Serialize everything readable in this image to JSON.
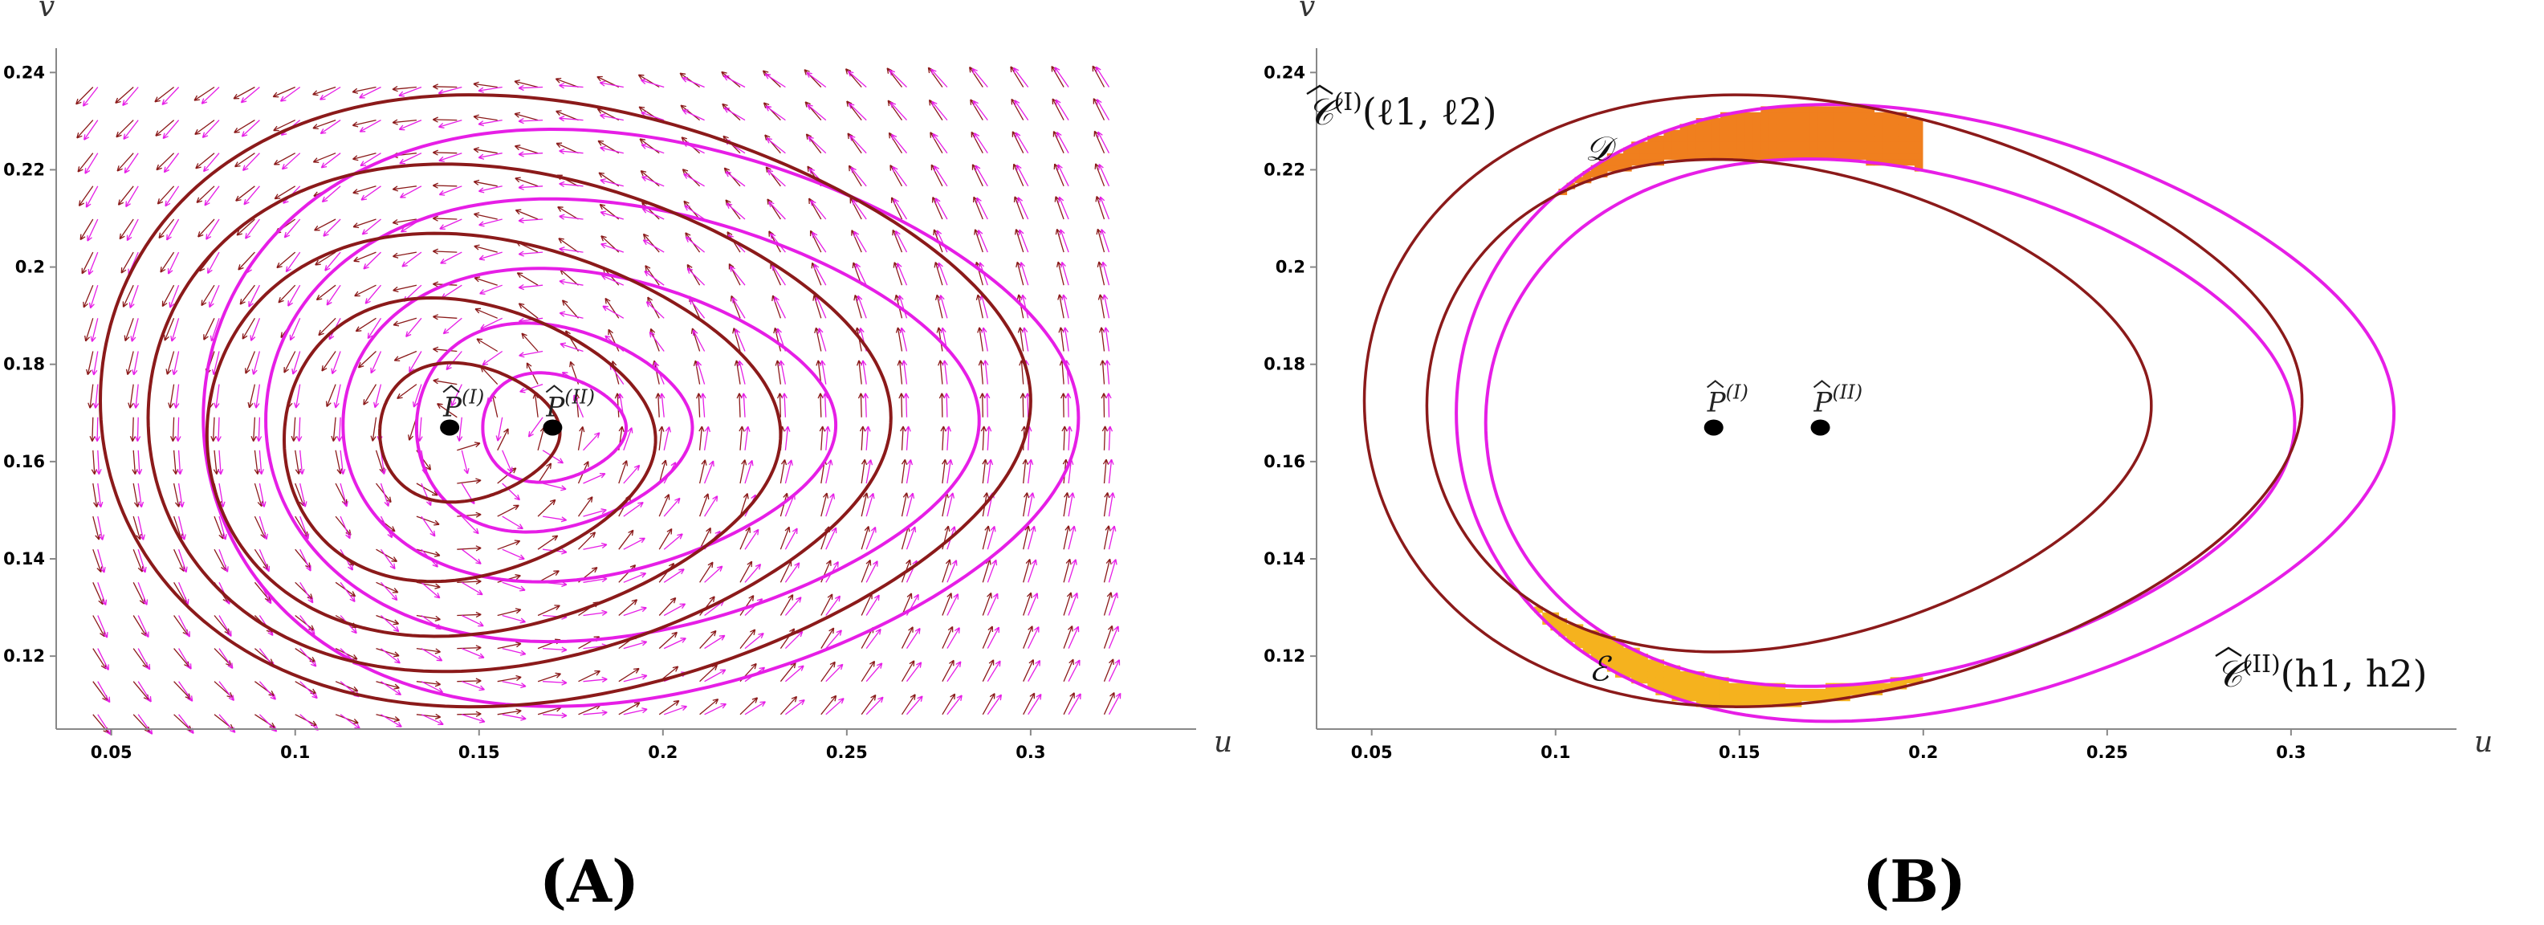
{
  "colors": {
    "system_I": "#8B1A1A",
    "system_II": "#E61EE6",
    "region_D": "#F07F1E",
    "region_E": "#F5B21E",
    "equilibrium": "#000000"
  },
  "chart_data": [
    {
      "id": "A",
      "type": "phase-portrait",
      "caption": "A",
      "xlabel": "u",
      "ylabel": "v",
      "xlim": [
        0.035,
        0.345
      ],
      "ylim": [
        0.105,
        0.245
      ],
      "xticks": [
        "0.05",
        "0.1",
        "0.15",
        "0.2",
        "0.25",
        "0.3"
      ],
      "yticks": [
        "0.12",
        "0.14",
        "0.16",
        "0.18",
        "0.2",
        "0.22",
        "0.24"
      ],
      "direction_field": {
        "x_range": [
          0.045,
          0.32
        ],
        "y_range": [
          0.108,
          0.237
        ],
        "systems": [
          "I",
          "II"
        ]
      },
      "equilibria": [
        {
          "name": "P_I",
          "label": "P^(I)",
          "x": 0.142,
          "y": 0.167
        },
        {
          "name": "P_II",
          "label": "P^(II)",
          "x": 0.17,
          "y": 0.167
        }
      ],
      "orbits": {
        "system_I": [
          {
            "xmin": 0.123,
            "xmax": 0.172,
            "ymin": 0.152,
            "ymax": 0.18
          },
          {
            "xmin": 0.097,
            "xmax": 0.198,
            "ymin": 0.136,
            "ymax": 0.193
          },
          {
            "xmin": 0.076,
            "xmax": 0.232,
            "ymin": 0.125,
            "ymax": 0.206
          },
          {
            "xmin": 0.06,
            "xmax": 0.262,
            "ymin": 0.118,
            "ymax": 0.22
          },
          {
            "xmin": 0.047,
            "xmax": 0.3,
            "ymin": 0.111,
            "ymax": 0.234
          }
        ],
        "system_II": [
          {
            "xmin": 0.151,
            "xmax": 0.19,
            "ymin": 0.156,
            "ymax": 0.178
          },
          {
            "xmin": 0.133,
            "xmax": 0.208,
            "ymin": 0.146,
            "ymax": 0.188
          },
          {
            "xmin": 0.113,
            "xmax": 0.247,
            "ymin": 0.136,
            "ymax": 0.199
          },
          {
            "xmin": 0.092,
            "xmax": 0.286,
            "ymin": 0.124,
            "ymax": 0.213
          },
          {
            "xmin": 0.075,
            "xmax": 0.313,
            "ymin": 0.111,
            "ymax": 0.227
          }
        ]
      }
    },
    {
      "id": "B",
      "type": "phase-portrait",
      "caption": "B",
      "xlabel": "u",
      "ylabel": "v",
      "xlim": [
        0.035,
        0.345
      ],
      "ylim": [
        0.105,
        0.245
      ],
      "xticks": [
        "0.05",
        "0.1",
        "0.15",
        "0.2",
        "0.25",
        "0.3"
      ],
      "yticks": [
        "0.12",
        "0.14",
        "0.16",
        "0.18",
        "0.2",
        "0.22",
        "0.24"
      ],
      "equilibria": [
        {
          "name": "P_I",
          "label": "P^(I)",
          "x": 0.143,
          "y": 0.167
        },
        {
          "name": "P_II",
          "label": "P^(II)",
          "x": 0.172,
          "y": 0.167
        }
      ],
      "curves": {
        "C_I": {
          "label": "C^(I)(ℓ1, ℓ2)",
          "orbits": [
            {
              "xmin": 0.065,
              "xmax": 0.262,
              "ymin": 0.122,
              "ymax": 0.221
            },
            {
              "xmin": 0.048,
              "xmax": 0.303,
              "ymin": 0.111,
              "ymax": 0.234
            }
          ]
        },
        "C_II": {
          "label": "C^(II)(h1, h2)",
          "orbits": [
            {
              "xmin": 0.081,
              "xmax": 0.301,
              "ymin": 0.115,
              "ymax": 0.221
            },
            {
              "xmin": 0.073,
              "xmax": 0.328,
              "ymin": 0.108,
              "ymax": 0.232
            }
          ]
        }
      },
      "regions": [
        {
          "name": "D",
          "label": "𝒟"
        },
        {
          "name": "E",
          "label": "ℰ"
        }
      ]
    }
  ]
}
